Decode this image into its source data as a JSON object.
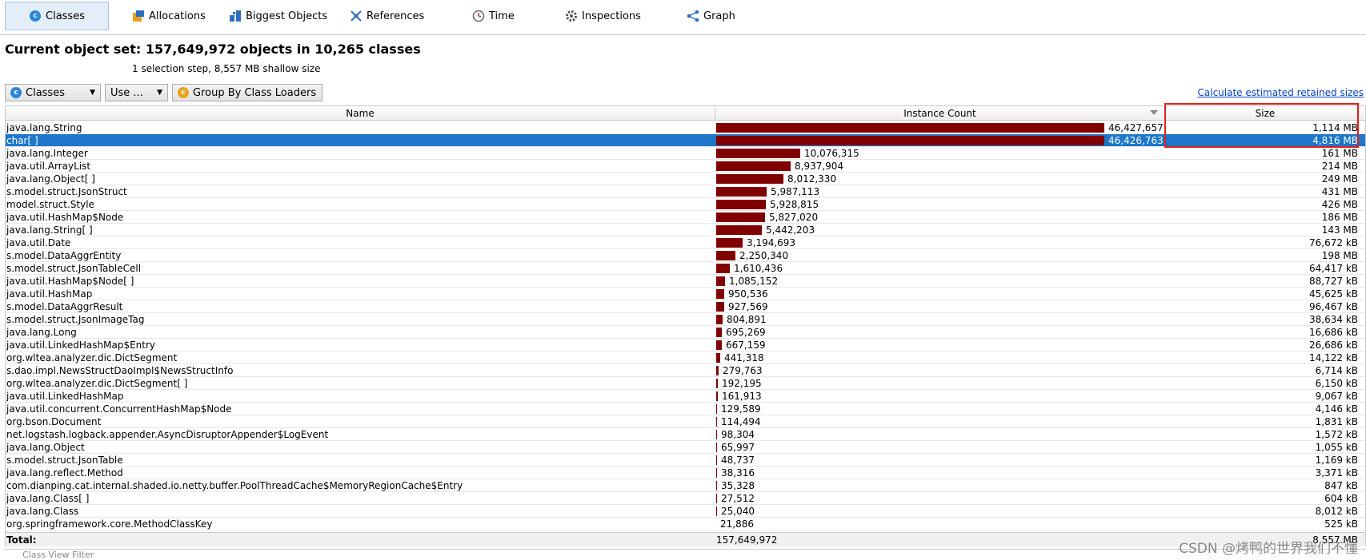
{
  "tabs": [
    {
      "label": "Classes",
      "icon": "classes-icon",
      "active": true
    },
    {
      "label": "Allocations",
      "icon": "allocations-icon"
    },
    {
      "label": "Biggest Objects",
      "icon": "biggest-objects-icon"
    },
    {
      "label": "References",
      "icon": "references-icon"
    },
    {
      "label": "Time",
      "icon": "clock-icon"
    },
    {
      "label": "Inspections",
      "icon": "gear-icon"
    },
    {
      "label": "Graph",
      "icon": "graph-icon"
    }
  ],
  "header": {
    "title": "Current object set:  157,649,972 objects in 10,265 classes",
    "subtitle": "1 selection step, 8,557 MB shallow size"
  },
  "toolbar": {
    "classes_dropdown": "Classes",
    "use_button": "Use ...",
    "group_button": "Group By Class Loaders",
    "retained_link": "Calculate estimated retained sizes"
  },
  "table": {
    "columns": [
      "Name",
      "Instance Count",
      "Size"
    ],
    "sorted_column": "Instance Count",
    "rows": [
      {
        "name": "java.lang.String",
        "count": "46,427,657",
        "count_value": 46427657,
        "size": "1,114 MB"
      },
      {
        "name": "char[ ]",
        "count": "46,426,763",
        "count_value": 46426763,
        "size": "4,816 MB",
        "selected": true
      },
      {
        "name": "java.lang.Integer",
        "count": "10,076,315",
        "count_value": 10076315,
        "size": "161 MB"
      },
      {
        "name": "java.util.ArrayList",
        "count": "8,937,904",
        "count_value": 8937904,
        "size": "214 MB"
      },
      {
        "name": "java.lang.Object[ ]",
        "count": "8,012,330",
        "count_value": 8012330,
        "size": "249 MB"
      },
      {
        "name": "s.model.struct.JsonStruct",
        "count": "5,987,113",
        "count_value": 5987113,
        "size": "431 MB"
      },
      {
        "name": "model.struct.Style",
        "count": "5,928,815",
        "count_value": 5928815,
        "size": "426 MB"
      },
      {
        "name": "java.util.HashMap$Node",
        "count": "5,827,020",
        "count_value": 5827020,
        "size": "186 MB"
      },
      {
        "name": "java.lang.String[ ]",
        "count": "5,442,203",
        "count_value": 5442203,
        "size": "143 MB"
      },
      {
        "name": "java.util.Date",
        "count": "3,194,693",
        "count_value": 3194693,
        "size": "76,672 kB"
      },
      {
        "name": "s.model.DataAggrEntity",
        "count": "2,250,340",
        "count_value": 2250340,
        "size": "198 MB"
      },
      {
        "name": "s.model.struct.JsonTableCell",
        "count": "1,610,436",
        "count_value": 1610436,
        "size": "64,417 kB"
      },
      {
        "name": "java.util.HashMap$Node[ ]",
        "count": "1,085,152",
        "count_value": 1085152,
        "size": "88,727 kB"
      },
      {
        "name": "java.util.HashMap",
        "count": "950,536",
        "count_value": 950536,
        "size": "45,625 kB"
      },
      {
        "name": "s.model.DataAggrResult",
        "count": "927,569",
        "count_value": 927569,
        "size": "96,467 kB"
      },
      {
        "name": "s.model.struct.JsonImageTag",
        "count": "804,891",
        "count_value": 804891,
        "size": "38,634 kB"
      },
      {
        "name": "java.lang.Long",
        "count": "695,269",
        "count_value": 695269,
        "size": "16,686 kB"
      },
      {
        "name": "java.util.LinkedHashMap$Entry",
        "count": "667,159",
        "count_value": 667159,
        "size": "26,686 kB"
      },
      {
        "name": "org.wltea.analyzer.dic.DictSegment",
        "count": "441,318",
        "count_value": 441318,
        "size": "14,122 kB"
      },
      {
        "name": "s.dao.impl.NewsStructDaoImpl$NewsStructInfo",
        "count": "279,763",
        "count_value": 279763,
        "size": "6,714 kB"
      },
      {
        "name": "org.wltea.analyzer.dic.DictSegment[ ]",
        "count": "192,195",
        "count_value": 192195,
        "size": "6,150 kB"
      },
      {
        "name": "java.util.LinkedHashMap",
        "count": "161,913",
        "count_value": 161913,
        "size": "9,067 kB"
      },
      {
        "name": "java.util.concurrent.ConcurrentHashMap$Node",
        "count": "129,589",
        "count_value": 129589,
        "size": "4,146 kB"
      },
      {
        "name": "org.bson.Document",
        "count": "114,494",
        "count_value": 114494,
        "size": "1,831 kB"
      },
      {
        "name": "net.logstash.logback.appender.AsyncDisruptorAppender$LogEvent",
        "count": "98,304",
        "count_value": 98304,
        "size": "1,572 kB"
      },
      {
        "name": "java.lang.Object",
        "count": "65,997",
        "count_value": 65997,
        "size": "1,055 kB"
      },
      {
        "name": "s.model.struct.JsonTable",
        "count": "48,737",
        "count_value": 48737,
        "size": "1,169 kB"
      },
      {
        "name": "java.lang.reflect.Method",
        "count": "38,316",
        "count_value": 38316,
        "size": "3,371 kB"
      },
      {
        "name": "com.dianping.cat.internal.shaded.io.netty.buffer.PoolThreadCache$MemoryRegionCache$Entry",
        "count": "35,328",
        "count_value": 35328,
        "size": "847 kB"
      },
      {
        "name": "java.lang.Class[ ]",
        "count": "27,512",
        "count_value": 27512,
        "size": "604 kB"
      },
      {
        "name": "java.lang.Class",
        "count": "25,040",
        "count_value": 25040,
        "size": "8,012 kB"
      },
      {
        "name": "org.springframework.core.MethodClassKey",
        "count": "21,886",
        "count_value": 21886,
        "size": "525 kB"
      }
    ],
    "total": {
      "label": "Total:",
      "count": "157,649,972",
      "size": "8,557 MB"
    }
  },
  "filter_placeholder": "Class View Filter",
  "watermark": "CSDN @烤鸭的世界我们不懂",
  "colors": {
    "bar": "#800000",
    "selection": "#1e77c8",
    "highlight_box": "#e01e1e",
    "link": "#0645c8"
  }
}
